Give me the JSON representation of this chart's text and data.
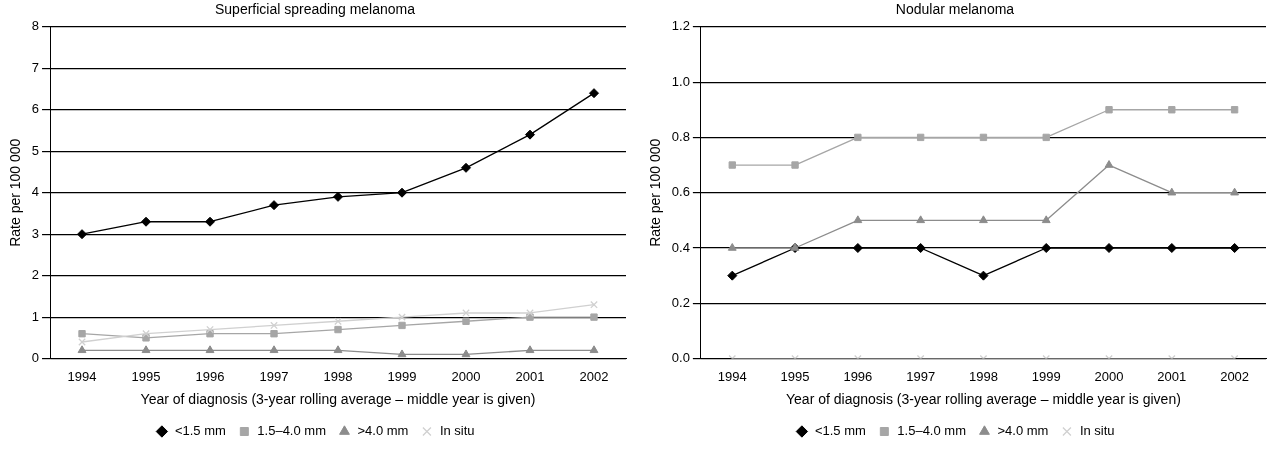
{
  "chart_data": [
    {
      "type": "line",
      "title": "Superficial spreading melanoma",
      "xlabel": "Year of diagnosis (3-year rolling average – middle year is given)",
      "ylabel": "Rate per 100 000",
      "categories": [
        "1994",
        "1995",
        "1996",
        "1997",
        "1998",
        "1999",
        "2000",
        "2001",
        "2002"
      ],
      "ylim": [
        0,
        8
      ],
      "yticks": [
        0,
        1,
        2,
        3,
        4,
        5,
        6,
        7,
        8
      ],
      "grid": "y",
      "legend": "bottom",
      "series": [
        {
          "name": "<1.5 mm",
          "color": "#000000",
          "marker": "diamond",
          "values": [
            3.0,
            3.3,
            3.3,
            3.7,
            3.9,
            4.0,
            4.6,
            5.4,
            6.4
          ]
        },
        {
          "name": "1.5–4.0 mm",
          "color": "#a6a6a6",
          "marker": "square",
          "values": [
            0.6,
            0.5,
            0.6,
            0.6,
            0.7,
            0.8,
            0.9,
            1.0,
            1.0
          ]
        },
        {
          "name": ">4.0 mm",
          "color": "#8c8c8c",
          "marker": "triangle",
          "values": [
            0.2,
            0.2,
            0.2,
            0.2,
            0.2,
            0.1,
            0.1,
            0.2,
            0.2
          ]
        },
        {
          "name": "In situ",
          "color": "#d0d0d0",
          "marker": "cross",
          "values": [
            0.4,
            0.6,
            0.7,
            0.8,
            0.9,
            1.0,
            1.1,
            1.1,
            1.3
          ]
        }
      ]
    },
    {
      "type": "line",
      "title": "Nodular melanoma",
      "xlabel": "Year of diagnosis (3-year rolling average – middle year is given)",
      "ylabel": "Rate per 100 000",
      "categories": [
        "1994",
        "1995",
        "1996",
        "1997",
        "1998",
        "1999",
        "2000",
        "2001",
        "2002"
      ],
      "ylim": [
        0,
        1.2
      ],
      "yticks": [
        {
          "value": 0,
          "label": "0.0"
        },
        {
          "value": 0.2,
          "label": "0.2"
        },
        {
          "value": 0.4,
          "label": "0.4"
        },
        {
          "value": 0.6,
          "label": "0.6"
        },
        {
          "value": 0.8,
          "label": "0.8"
        },
        {
          "value": 1,
          "label": "1.0"
        },
        {
          "value": 1.2,
          "label": "1.2"
        }
      ],
      "grid": "y",
      "legend": "bottom",
      "series": [
        {
          "name": "<1.5 mm",
          "color": "#000000",
          "marker": "diamond",
          "values": [
            0.3,
            0.4,
            0.4,
            0.4,
            0.3,
            0.4,
            0.4,
            0.4,
            0.4
          ]
        },
        {
          "name": "1.5–4.0 mm",
          "color": "#a6a6a6",
          "marker": "square",
          "values": [
            0.7,
            0.7,
            0.8,
            0.8,
            0.8,
            0.8,
            0.9,
            0.9,
            0.9
          ]
        },
        {
          "name": ">4.0 mm",
          "color": "#8c8c8c",
          "marker": "triangle",
          "values": [
            0.4,
            0.4,
            0.5,
            0.5,
            0.5,
            0.5,
            0.7,
            0.6,
            0.6
          ]
        },
        {
          "name": "In situ",
          "color": "#d0d0d0",
          "marker": "cross",
          "values": [
            0,
            0,
            0,
            0,
            0,
            0,
            0,
            0,
            0
          ]
        }
      ]
    }
  ]
}
